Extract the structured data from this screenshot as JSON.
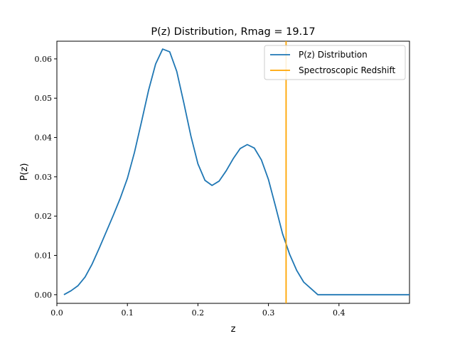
{
  "chart_data": {
    "type": "line",
    "title": "P(z) Distribution, Rmag = 19.17",
    "xlabel": "z",
    "ylabel": "P(z)",
    "xlim": [
      0.0,
      0.5
    ],
    "ylim": [
      -0.0022,
      0.0645
    ],
    "xticks": [
      0.0,
      0.1,
      0.2,
      0.3,
      0.4
    ],
    "xtick_labels": [
      "0.0",
      "0.1",
      "0.2",
      "0.3",
      "0.4"
    ],
    "yticks": [
      0.0,
      0.01,
      0.02,
      0.03,
      0.04,
      0.05,
      0.06
    ],
    "ytick_labels": [
      "0.00",
      "0.01",
      "0.02",
      "0.03",
      "0.04",
      "0.05",
      "0.06"
    ],
    "grid": false,
    "legend_position": "top-right",
    "series": [
      {
        "name": "P(z) Distribution",
        "color": "#1f77b4",
        "x": [
          0.01,
          0.02,
          0.03,
          0.04,
          0.05,
          0.06,
          0.07,
          0.08,
          0.09,
          0.1,
          0.11,
          0.12,
          0.13,
          0.14,
          0.15,
          0.16,
          0.17,
          0.18,
          0.19,
          0.2,
          0.21,
          0.22,
          0.23,
          0.24,
          0.25,
          0.26,
          0.27,
          0.28,
          0.29,
          0.3,
          0.31,
          0.32,
          0.33,
          0.34,
          0.35,
          0.36,
          0.37,
          0.38,
          0.39,
          0.4,
          0.41,
          0.42,
          0.43,
          0.44,
          0.45,
          0.46,
          0.47,
          0.48,
          0.49,
          0.5
        ],
        "y": [
          0.0,
          0.001,
          0.0023,
          0.0045,
          0.0078,
          0.0118,
          0.016,
          0.0202,
          0.0246,
          0.0296,
          0.0362,
          0.044,
          0.052,
          0.0587,
          0.0625,
          0.0618,
          0.0568,
          0.0488,
          0.0404,
          0.0333,
          0.0291,
          0.0278,
          0.0289,
          0.0315,
          0.0346,
          0.0372,
          0.0382,
          0.0373,
          0.0343,
          0.0293,
          0.0225,
          0.0155,
          0.0103,
          0.0062,
          0.0032,
          0.0016,
          0.0,
          0.0,
          0.0,
          0.0,
          0.0,
          0.0,
          0.0,
          0.0,
          0.0,
          0.0,
          0.0,
          0.0,
          0.0,
          0.0
        ]
      },
      {
        "name": "Spectroscopic Redshift",
        "color": "#ffa500",
        "type": "vline",
        "x": 0.325
      }
    ]
  }
}
